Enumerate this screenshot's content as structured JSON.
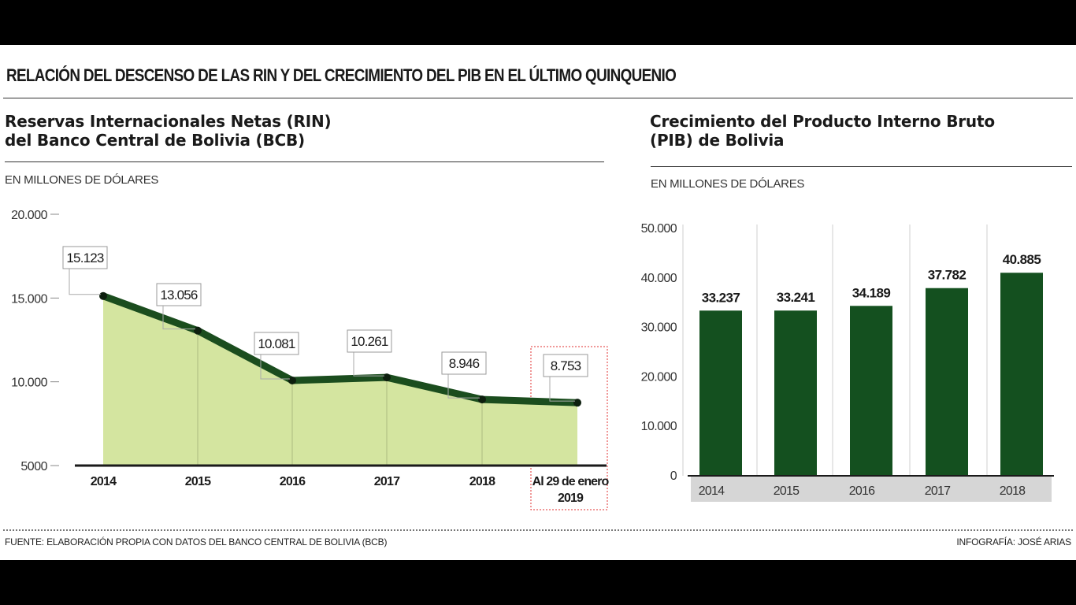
{
  "header": {
    "title": "RELACIÓN DEL DESCENSO DE LAS RIN Y DEL CRECIMIENTO DEL PIB EN EL ÚLTIMO QUINQUENIO"
  },
  "left_panel": {
    "title_line1": "Reservas Internacionales Netas (RIN)",
    "title_line2": "del Banco Central de Bolivia (BCB)",
    "unit": "EN MILLONES DE DÓLARES"
  },
  "right_panel": {
    "title_line1": "Crecimiento del Producto Interno Bruto",
    "title_line2": "(PIB) de Bolivia",
    "unit": "EN MILLONES DE DÓLARES"
  },
  "footer": {
    "source": "FUENTE: ELABORACIÓN PROPIA CON DATOS DEL BANCO CENTRAL DE BOLIVIA (BCB)",
    "credit": "INFOGRAFÍA: JOSÉ ARIAS"
  },
  "colors": {
    "line_dark_green": "#1b4d1e",
    "area_light_green": "#d4e5a0",
    "bar_green": "#14501f",
    "highlight_red": "#e03030",
    "axis_band_gray": "#d6d6d6"
  },
  "chart_data": [
    {
      "type": "area",
      "categories": [
        "2014",
        "2015",
        "2016",
        "2017",
        "2018",
        "Al 29 de enero 2019"
      ],
      "values": [
        15123,
        13056,
        10081,
        10261,
        8946,
        8753
      ],
      "value_labels": [
        "15.123",
        "13.056",
        "10.081",
        "10.261",
        "8.946",
        "8.753"
      ],
      "ylim": [
        5000,
        20000
      ],
      "yticks": [
        5000,
        10000,
        15000,
        20000
      ],
      "ytick_labels": [
        "5000",
        "10.000",
        "15.000",
        "20.000"
      ],
      "highlight_category": "Al 29 de enero 2019",
      "grid": false
    },
    {
      "type": "bar",
      "categories": [
        "2014",
        "2015",
        "2016",
        "2017",
        "2018"
      ],
      "values": [
        33237,
        33241,
        34189,
        37782,
        40885
      ],
      "value_labels": [
        "33.237",
        "33.241",
        "34.189",
        "37.782",
        "40.885"
      ],
      "ylim": [
        0,
        50000
      ],
      "yticks": [
        0,
        10000,
        20000,
        30000,
        40000,
        50000
      ],
      "ytick_labels": [
        "0",
        "10.000",
        "20.000",
        "30.000",
        "40.000",
        "50.000"
      ],
      "grid": true
    }
  ]
}
